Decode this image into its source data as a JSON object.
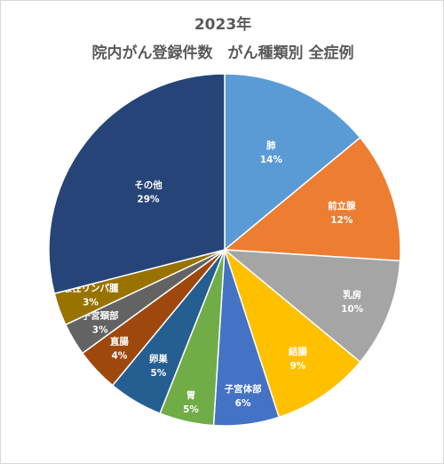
{
  "chart_data": {
    "type": "pie",
    "title": [
      "2023年",
      "院内がん登録件数　がん種類別 全症例"
    ],
    "slices": [
      {
        "label": "肺",
        "value": 14,
        "pct_label": "14%",
        "color": "#5b9bd5"
      },
      {
        "label": "前立腺",
        "value": 12,
        "pct_label": "12%",
        "color": "#ed7d31"
      },
      {
        "label": "乳房",
        "value": 10,
        "pct_label": "10%",
        "color": "#a5a5a5"
      },
      {
        "label": "結腸",
        "value": 9,
        "pct_label": "9%",
        "color": "#ffc000"
      },
      {
        "label": "子宮体部",
        "value": 6,
        "pct_label": "6%",
        "color": "#4472c4"
      },
      {
        "label": "胃",
        "value": 5,
        "pct_label": "5%",
        "color": "#70ad47"
      },
      {
        "label": "卵巣",
        "value": 5,
        "pct_label": "5%",
        "color": "#255e91"
      },
      {
        "label": "直腸",
        "value": 4,
        "pct_label": "4%",
        "color": "#9e480e"
      },
      {
        "label": "子宮頚部",
        "value": 3,
        "pct_label": "3%",
        "color": "#636363"
      },
      {
        "label": "悪性リンパ腫",
        "value": 3,
        "pct_label": "3%",
        "color": "#997300"
      },
      {
        "label": "その他",
        "value": 29,
        "pct_label": "29%",
        "color": "#264478"
      }
    ],
    "legend": "none",
    "start_angle_deg": 0,
    "direction": "clockwise"
  }
}
